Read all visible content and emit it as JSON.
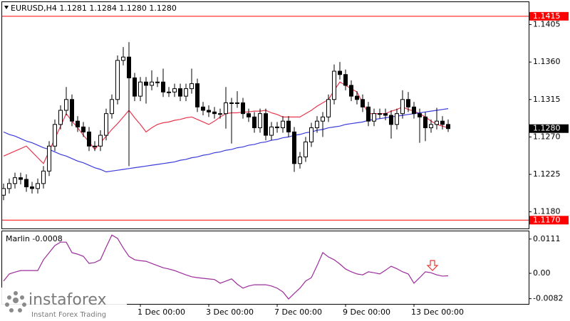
{
  "chart_data": [
    {
      "type": "candlestick",
      "title": "EURUSD,H4  1.1281 1.1284 1.1280 1.1280",
      "categories": [
        null,
        null,
        null,
        null,
        null,
        null,
        null,
        null,
        null,
        null,
        null,
        null,
        null,
        null,
        null,
        null,
        null,
        null,
        null,
        null,
        null,
        null,
        null,
        null,
        "1 Dec 00:00",
        null,
        null,
        null,
        null,
        null,
        null,
        null,
        null,
        null,
        null,
        null,
        "3 Dec 00:00",
        null,
        null,
        null,
        null,
        null,
        null,
        null,
        null,
        null,
        null,
        null,
        "7 Dec 00:00",
        null,
        null,
        null,
        null,
        null,
        null,
        null,
        null,
        null,
        null,
        null,
        "9 Dec 00:00",
        null,
        null,
        null,
        null,
        null,
        null,
        null,
        null,
        null,
        null,
        null,
        "13 Dec 00:00",
        null,
        null,
        null,
        null,
        null,
        null
      ],
      "open": [
        1.12,
        1.1208,
        1.1214,
        1.1221,
        1.1219,
        1.121,
        1.1208,
        1.1214,
        1.1229,
        1.1259,
        1.1285,
        1.1302,
        1.1315,
        1.1289,
        1.1282,
        1.1276,
        1.1259,
        1.1259,
        1.1272,
        1.1298,
        1.1315,
        1.1362,
        1.1366,
        1.1341,
        1.1319,
        1.1336,
        1.1332,
        1.1336,
        1.1336,
        1.1324,
        1.1324,
        1.1328,
        1.1319,
        1.1328,
        1.1334,
        1.1306,
        1.1302,
        1.13,
        1.1298,
        1.1298,
        1.1311,
        1.1311,
        1.1311,
        1.1298,
        1.1294,
        1.1281,
        1.1298,
        1.1272,
        1.1282,
        1.1281,
        1.1289,
        1.1276,
        1.1238,
        1.1246,
        1.1264,
        1.1281,
        1.1289,
        1.1294,
        1.1315,
        1.1349,
        1.1345,
        1.1332,
        1.1319,
        1.1315,
        1.1306,
        1.1289,
        1.1298,
        1.1298,
        1.1296,
        1.1285,
        1.1298,
        1.1315,
        1.1306,
        1.1298,
        1.1294,
        1.1281,
        1.1285,
        1.1289,
        1.1285
      ],
      "high": [
        1.1214,
        1.122,
        1.1227,
        1.1227,
        1.1225,
        1.1216,
        1.122,
        1.1235,
        1.1265,
        1.1291,
        1.1308,
        1.133,
        1.1321,
        1.1295,
        1.1288,
        1.1282,
        1.1265,
        1.1278,
        1.1304,
        1.1321,
        1.1368,
        1.1378,
        1.1384,
        1.1347,
        1.1342,
        1.1342,
        1.135,
        1.1342,
        1.1352,
        1.133,
        1.1334,
        1.1334,
        1.1334,
        1.1352,
        1.134,
        1.1312,
        1.1308,
        1.1306,
        1.1304,
        1.133,
        1.1317,
        1.1325,
        1.1317,
        1.1304,
        1.13,
        1.1304,
        1.1304,
        1.1288,
        1.1288,
        1.1295,
        1.1295,
        1.1282,
        1.1252,
        1.127,
        1.1287,
        1.1295,
        1.13,
        1.1321,
        1.1357,
        1.136,
        1.1351,
        1.1338,
        1.1325,
        1.1321,
        1.1312,
        1.1304,
        1.1304,
        1.1304,
        1.1302,
        1.1304,
        1.1326,
        1.1324,
        1.1312,
        1.1304,
        1.13,
        1.1291,
        1.1305,
        1.1295,
        1.1291
      ],
      "low": [
        1.1194,
        1.1202,
        1.1208,
        1.1213,
        1.1204,
        1.1202,
        1.1202,
        1.1208,
        1.1223,
        1.1253,
        1.1279,
        1.1296,
        1.1283,
        1.1276,
        1.127,
        1.1253,
        1.1253,
        1.1253,
        1.1266,
        1.1292,
        1.1309,
        1.1356,
        1.1235,
        1.1313,
        1.1313,
        1.131,
        1.1326,
        1.133,
        1.1318,
        1.1318,
        1.1318,
        1.1313,
        1.1313,
        1.1322,
        1.13,
        1.1296,
        1.1294,
        1.1292,
        1.1292,
        1.128,
        1.1262,
        1.1305,
        1.1292,
        1.1288,
        1.1275,
        1.1275,
        1.1266,
        1.1266,
        1.1275,
        1.1275,
        1.127,
        1.1228,
        1.1232,
        1.124,
        1.1258,
        1.1275,
        1.127,
        1.1288,
        1.1309,
        1.1339,
        1.1326,
        1.1313,
        1.1309,
        1.13,
        1.1283,
        1.1283,
        1.1292,
        1.129,
        1.1268,
        1.1279,
        1.1292,
        1.13,
        1.1292,
        1.1263,
        1.1265,
        1.1275,
        1.1279,
        1.1279,
        1.1276
      ],
      "close": [
        1.1208,
        1.1214,
        1.1221,
        1.1219,
        1.121,
        1.1208,
        1.1214,
        1.1229,
        1.1259,
        1.1285,
        1.1302,
        1.1315,
        1.1289,
        1.1282,
        1.1276,
        1.1259,
        1.1259,
        1.1272,
        1.1298,
        1.1315,
        1.1362,
        1.1366,
        1.1341,
        1.1319,
        1.1336,
        1.1332,
        1.1336,
        1.1336,
        1.1324,
        1.1324,
        1.1328,
        1.1319,
        1.1328,
        1.1334,
        1.1306,
        1.1302,
        1.13,
        1.1298,
        1.1298,
        1.1311,
        1.1311,
        1.1311,
        1.1298,
        1.1294,
        1.1281,
        1.1298,
        1.1272,
        1.1282,
        1.1281,
        1.1289,
        1.1276,
        1.1238,
        1.1246,
        1.1264,
        1.1281,
        1.1289,
        1.1294,
        1.1315,
        1.1349,
        1.1345,
        1.1332,
        1.1319,
        1.1315,
        1.1306,
        1.1289,
        1.1298,
        1.1298,
        1.1296,
        1.1285,
        1.1298,
        1.1315,
        1.1306,
        1.1298,
        1.1294,
        1.1281,
        1.1285,
        1.1289,
        1.1285,
        1.128
      ],
      "overlays": [
        {
          "color": "#e8384f",
          "values": [
            1.1247,
            1.125,
            1.1253,
            1.1256,
            1.1259,
            1.1252,
            1.1245,
            1.1238,
            1.1253,
            1.1268,
            1.1283,
            1.1298,
            1.1289,
            1.1281,
            1.1272,
            1.1264,
            1.1255,
            1.1263,
            1.1271,
            1.1279,
            1.1286,
            1.1294,
            1.1302,
            1.1293,
            1.1285,
            1.1276,
            1.1281,
            1.1285,
            1.1287,
            1.1288,
            1.129,
            1.1291,
            1.1293,
            1.1294,
            1.1291,
            1.1288,
            1.1285,
            1.1289,
            1.1294,
            1.1298,
            1.1299,
            1.1299,
            1.13,
            1.13,
            1.1301,
            1.1301,
            1.1302,
            1.1299,
            1.1297,
            1.1294,
            1.1294,
            1.1294,
            1.1294,
            1.1298,
            1.1302,
            1.1307,
            1.1311,
            1.1315,
            1.1326,
            1.1336,
            1.1332,
            1.1328,
            1.1324,
            1.1311,
            1.1298,
            1.1298,
            1.1298,
            1.1298,
            1.1301,
            1.1303,
            1.1306,
            1.1303,
            1.1301,
            1.1298,
            1.1294,
            1.1289,
            1.1285,
            1.1283,
            1.1281
          ]
        },
        {
          "color": "#3b3bdc",
          "values": [
            1.1276,
            1.1273,
            1.1271,
            1.1268,
            1.1265,
            1.1263,
            1.126,
            1.1257,
            1.1255,
            1.1252,
            1.1249,
            1.1247,
            1.1244,
            1.1241,
            1.1239,
            1.1236,
            1.1233,
            1.1231,
            1.1228,
            1.1229,
            1.123,
            1.1231,
            1.1232,
            1.1233,
            1.1234,
            1.1235,
            1.1236,
            1.1237,
            1.1238,
            1.1239,
            1.124,
            1.1242,
            1.1243,
            1.1245,
            1.1246,
            1.1248,
            1.1249,
            1.1251,
            1.1252,
            1.1254,
            1.1255,
            1.1257,
            1.1258,
            1.126,
            1.1261,
            1.1263,
            1.1264,
            1.1266,
            1.1267,
            1.1269,
            1.127,
            1.1272,
            1.1273,
            1.1275,
            1.1276,
            1.1278,
            1.1279,
            1.1281,
            1.1282,
            1.1283,
            1.1285,
            1.1286,
            1.1287,
            1.1288,
            1.129,
            1.1291,
            1.1292,
            1.1293,
            1.1294,
            1.1295,
            1.1296,
            1.1297,
            1.1298,
            1.1299,
            1.13,
            1.1301,
            1.1302,
            1.1303,
            1.1304
          ]
        }
      ],
      "ylim": [
        1.116,
        1.1432
      ],
      "yticks": [
        1.1405,
        {
          "value": 1.136,
          "label": "1.1360"
        },
        1.1315,
        {
          "value": 1.127,
          "label": "1.1270"
        },
        1.1225,
        {
          "value": 1.118,
          "label": "1.1180"
        }
      ],
      "hlines": [
        {
          "value": 1.1415,
          "label": "1.1415",
          "color": "#ff0000"
        },
        {
          "value": 1.117,
          "label": "1.1170",
          "color": "#ff0000"
        }
      ],
      "last_price": {
        "value": 1.128,
        "label": "1.1280",
        "color": "#000000"
      },
      "bull_color": "#ffffff",
      "bear_color": "#000000"
    },
    {
      "type": "line",
      "title": "Marlin -0.0008",
      "color": "#9b2c9b",
      "values": [
        -0.0025,
        -0.0002,
        0.0004,
        0.0009,
        0.0009,
        0.0009,
        0.0009,
        0.0044,
        0.0067,
        0.009,
        0.0101,
        0.0101,
        0.0067,
        0.0062,
        0.0055,
        0.0032,
        0.0035,
        0.0044,
        0.0085,
        0.0124,
        0.0113,
        0.0082,
        0.0055,
        0.0044,
        0.0041,
        0.0039,
        0.0032,
        0.0025,
        0.0018,
        0.0014,
        0.0009,
        0.0002,
        -0.0005,
        -0.0011,
        -0.0014,
        -0.0016,
        -0.0018,
        -0.002,
        -0.0032,
        -0.0025,
        -0.0018,
        -0.0035,
        -0.0048,
        -0.0041,
        -0.0037,
        -0.0037,
        -0.0037,
        -0.0041,
        -0.0048,
        -0.006,
        -0.0083,
        -0.0065,
        -0.0048,
        -0.0025,
        -0.0014,
        0.0025,
        0.0067,
        0.0053,
        0.0044,
        0.003,
        0.0014,
        0.0005,
        -0.0002,
        -0.0005,
        0.0005,
        0.0002,
        -0.0002,
        0.001,
        0.0023,
        0.0015,
        0.0005,
        -0.0002,
        -0.0032,
        -0.0014,
        0.0005,
        0.0002,
        -0.0005,
        -0.0009,
        -0.0008
      ],
      "ylim": [
        -0.0099,
        0.0136
      ],
      "yticks": [
        0.0111,
        {
          "value": 0,
          "label": "0.00"
        },
        -0.0082
      ]
    }
  ],
  "watermark": {
    "name": "instaforex",
    "tagline": "Instant Forex Trading"
  }
}
